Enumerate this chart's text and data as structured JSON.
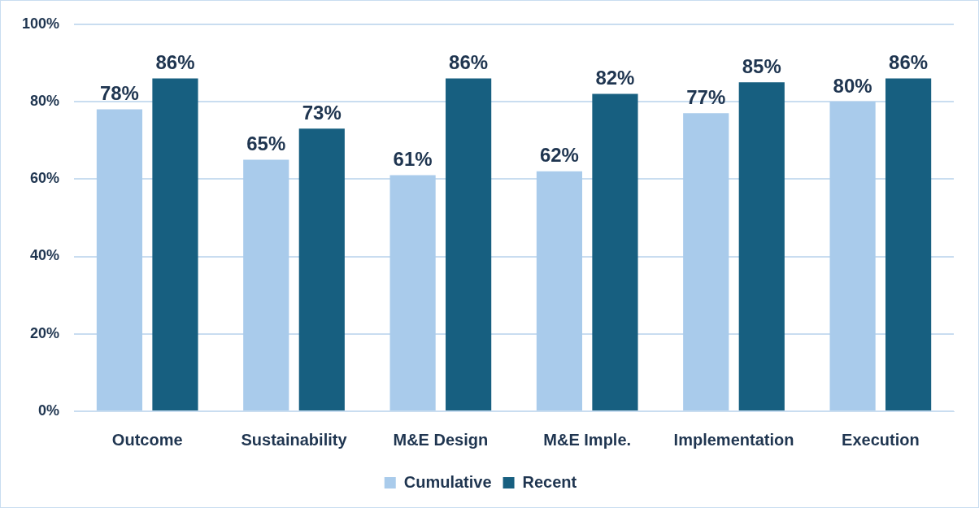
{
  "chart_data": {
    "type": "bar",
    "categories": [
      "Outcome",
      "Sustainability",
      "M&E Design",
      "M&E Imple.",
      "Implementation",
      "Execution"
    ],
    "series": [
      {
        "name": "Cumulative",
        "color": "#a9cbeb",
        "values": [
          78,
          65,
          61,
          62,
          77,
          80
        ],
        "value_labels": [
          "78%",
          "65%",
          "61%",
          "62%",
          "77%",
          "80%"
        ]
      },
      {
        "name": "Recent",
        "color": "#175f80",
        "values": [
          86,
          73,
          86,
          82,
          85,
          86
        ],
        "value_labels": [
          "86%",
          "73%",
          "86%",
          "82%",
          "85%",
          "86%"
        ]
      }
    ],
    "ylim": [
      0,
      100
    ],
    "yticks": [
      {
        "value": 0,
        "label": "0%"
      },
      {
        "value": 20,
        "label": "20%"
      },
      {
        "value": 40,
        "label": "40%"
      },
      {
        "value": 60,
        "label": "60%"
      },
      {
        "value": 80,
        "label": "80%"
      },
      {
        "value": 100,
        "label": "100%"
      }
    ],
    "grid": "y",
    "legend": "bottom"
  }
}
